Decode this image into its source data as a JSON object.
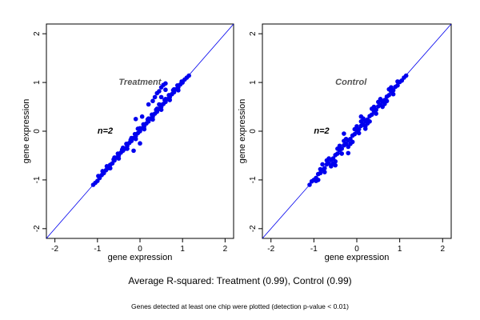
{
  "chart_data": [
    {
      "type": "scatter",
      "annotation_label": "Treatment",
      "n_label": "n=2",
      "xlabel": "gene expression",
      "ylabel": "gene expression",
      "xlim": [
        -2.2,
        2.2
      ],
      "ylim": [
        -2.2,
        2.2
      ],
      "xticks": [
        -2,
        -1,
        0,
        1,
        2
      ],
      "yticks": [
        -2,
        -1,
        0,
        1,
        2
      ],
      "reference_line": "y = x",
      "point_color": "#0000ee",
      "line_color": "#0000ee",
      "series": [
        {
          "x": [
            -1.1,
            -1.05,
            -1.0,
            -0.95,
            -0.9,
            -0.85,
            -0.8,
            -0.75,
            -0.7,
            -0.65,
            -0.6,
            -0.55,
            -0.5,
            -0.45,
            -0.4,
            -0.35,
            -0.3,
            -0.25,
            -0.2,
            -0.15,
            -0.1,
            -0.05,
            0.0,
            0.05,
            0.1,
            0.15,
            0.2,
            0.25,
            0.3,
            0.35,
            0.4,
            0.45,
            0.5,
            0.55,
            0.6,
            0.65,
            0.7,
            0.75,
            0.8,
            0.85,
            0.9,
            0.95,
            1.0,
            1.05,
            1.1,
            1.15,
            -0.98,
            -0.88,
            -0.78,
            -0.62,
            -0.52,
            -0.42,
            -0.32,
            -0.22,
            -0.12,
            -0.02,
            0.08,
            0.18,
            0.28,
            0.38,
            0.48,
            0.58,
            0.68,
            0.78,
            0.88,
            0.98,
            -0.7,
            -0.5,
            -0.3,
            -0.1,
            0.1,
            0.3,
            0.5,
            0.7,
            0.9,
            -0.6,
            -0.4,
            -0.2,
            0.0,
            0.2,
            0.4,
            0.6,
            0.8,
            -0.1,
            -0.05,
            0.0,
            0.05,
            -0.15,
            0.2,
            0.3,
            0.35,
            0.4,
            0.45,
            0.5,
            0.55,
            0.6,
            0.5,
            0.45,
            0.6
          ],
          "y": [
            -1.1,
            -1.06,
            -1.02,
            -0.96,
            -0.9,
            -0.86,
            -0.8,
            -0.76,
            -0.69,
            -0.66,
            -0.6,
            -0.54,
            -0.5,
            -0.44,
            -0.4,
            -0.36,
            -0.3,
            -0.24,
            -0.2,
            -0.14,
            -0.1,
            -0.04,
            0.0,
            0.06,
            0.1,
            0.16,
            0.2,
            0.26,
            0.3,
            0.36,
            0.4,
            0.46,
            0.5,
            0.56,
            0.6,
            0.66,
            0.7,
            0.76,
            0.8,
            0.86,
            0.9,
            0.96,
            1.0,
            1.06,
            1.1,
            1.14,
            -0.92,
            -0.82,
            -0.72,
            -0.58,
            -0.46,
            -0.38,
            -0.26,
            -0.18,
            -0.06,
            0.04,
            0.14,
            0.24,
            0.34,
            0.44,
            0.54,
            0.64,
            0.74,
            0.84,
            0.94,
            1.02,
            -0.76,
            -0.56,
            -0.36,
            -0.16,
            0.04,
            0.24,
            0.44,
            0.64,
            0.84,
            -0.54,
            -0.34,
            -0.14,
            0.06,
            0.26,
            0.46,
            0.66,
            0.86,
            0.25,
            0.05,
            -0.25,
            0.3,
            -0.4,
            0.55,
            0.62,
            0.7,
            0.78,
            0.82,
            0.9,
            0.95,
            0.98,
            0.7,
            0.55,
            0.85
          ]
        }
      ]
    },
    {
      "type": "scatter",
      "annotation_label": "Control",
      "n_label": "n=2",
      "xlabel": "gene expression",
      "ylabel": "gene expression",
      "xlim": [
        -2.2,
        2.2
      ],
      "ylim": [
        -2.2,
        2.2
      ],
      "xticks": [
        -2,
        -1,
        0,
        1,
        2
      ],
      "yticks": [
        -2,
        -1,
        0,
        1,
        2
      ],
      "reference_line": "y = x",
      "point_color": "#0000ee",
      "line_color": "#0000ee",
      "series": [
        {
          "x": [
            -1.1,
            -1.05,
            -1.0,
            -0.95,
            -0.9,
            -0.85,
            -0.8,
            -0.75,
            -0.7,
            -0.65,
            -0.6,
            -0.55,
            -0.5,
            -0.45,
            -0.4,
            -0.35,
            -0.3,
            -0.25,
            -0.2,
            -0.15,
            -0.1,
            -0.05,
            0.0,
            0.05,
            0.1,
            0.15,
            0.2,
            0.25,
            0.3,
            0.35,
            0.4,
            0.45,
            0.5,
            0.55,
            0.6,
            0.65,
            0.7,
            0.75,
            0.8,
            0.85,
            0.9,
            0.95,
            1.0,
            1.05,
            1.1,
            1.15,
            -0.95,
            -0.85,
            -0.75,
            -0.65,
            -0.55,
            -0.45,
            -0.35,
            -0.25,
            -0.15,
            -0.05,
            0.05,
            0.15,
            0.25,
            0.35,
            0.45,
            0.55,
            0.65,
            0.75,
            0.85,
            0.95,
            -0.8,
            -0.6,
            -0.4,
            -0.2,
            0.0,
            0.2,
            0.4,
            0.6,
            0.8,
            -0.7,
            -0.5,
            -0.3,
            -0.1,
            0.1,
            0.3,
            0.5,
            0.7,
            -0.9,
            -0.3,
            -0.2,
            0.1,
            0.2,
            -0.5
          ],
          "y": [
            -1.1,
            -1.03,
            -1.0,
            -0.96,
            -0.88,
            -0.86,
            -0.79,
            -0.76,
            -0.68,
            -0.66,
            -0.59,
            -0.56,
            -0.49,
            -0.46,
            -0.39,
            -0.36,
            -0.29,
            -0.26,
            -0.19,
            -0.16,
            -0.09,
            -0.06,
            0.01,
            0.04,
            0.11,
            0.14,
            0.21,
            0.24,
            0.31,
            0.34,
            0.41,
            0.44,
            0.51,
            0.54,
            0.61,
            0.64,
            0.71,
            0.74,
            0.81,
            0.84,
            0.91,
            0.94,
            1.01,
            1.04,
            1.1,
            1.14,
            -1.02,
            -0.78,
            -0.84,
            -0.56,
            -0.66,
            -0.36,
            -0.46,
            -0.16,
            -0.26,
            0.04,
            -0.04,
            0.26,
            0.16,
            0.46,
            0.36,
            0.66,
            0.56,
            0.86,
            0.76,
            1.02,
            -0.68,
            -0.72,
            -0.3,
            -0.32,
            0.1,
            0.1,
            0.5,
            0.5,
            0.9,
            -0.6,
            -0.62,
            -0.2,
            -0.22,
            0.2,
            0.2,
            0.6,
            0.62,
            -1.0,
            -0.05,
            -0.45,
            0.3,
            0.05,
            -0.7
          ]
        }
      ]
    }
  ],
  "captions": {
    "main": "Average R-squared: Treatment (0.99), Control (0.99)",
    "note": "Genes detected at least one chip were plotted (detection p-value < 0.01)"
  }
}
